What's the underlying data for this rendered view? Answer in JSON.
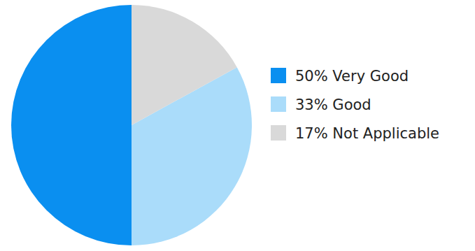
{
  "chart_data": {
    "type": "pie",
    "categories": [
      "Very Good",
      "Good",
      "Not Applicable"
    ],
    "values": [
      50,
      33,
      17
    ],
    "value_labels": [
      "50%",
      "33%",
      "17%"
    ],
    "colors": [
      "#0a8ff0",
      "#aadcfa",
      "#d9d9d9"
    ],
    "legend": "right"
  }
}
